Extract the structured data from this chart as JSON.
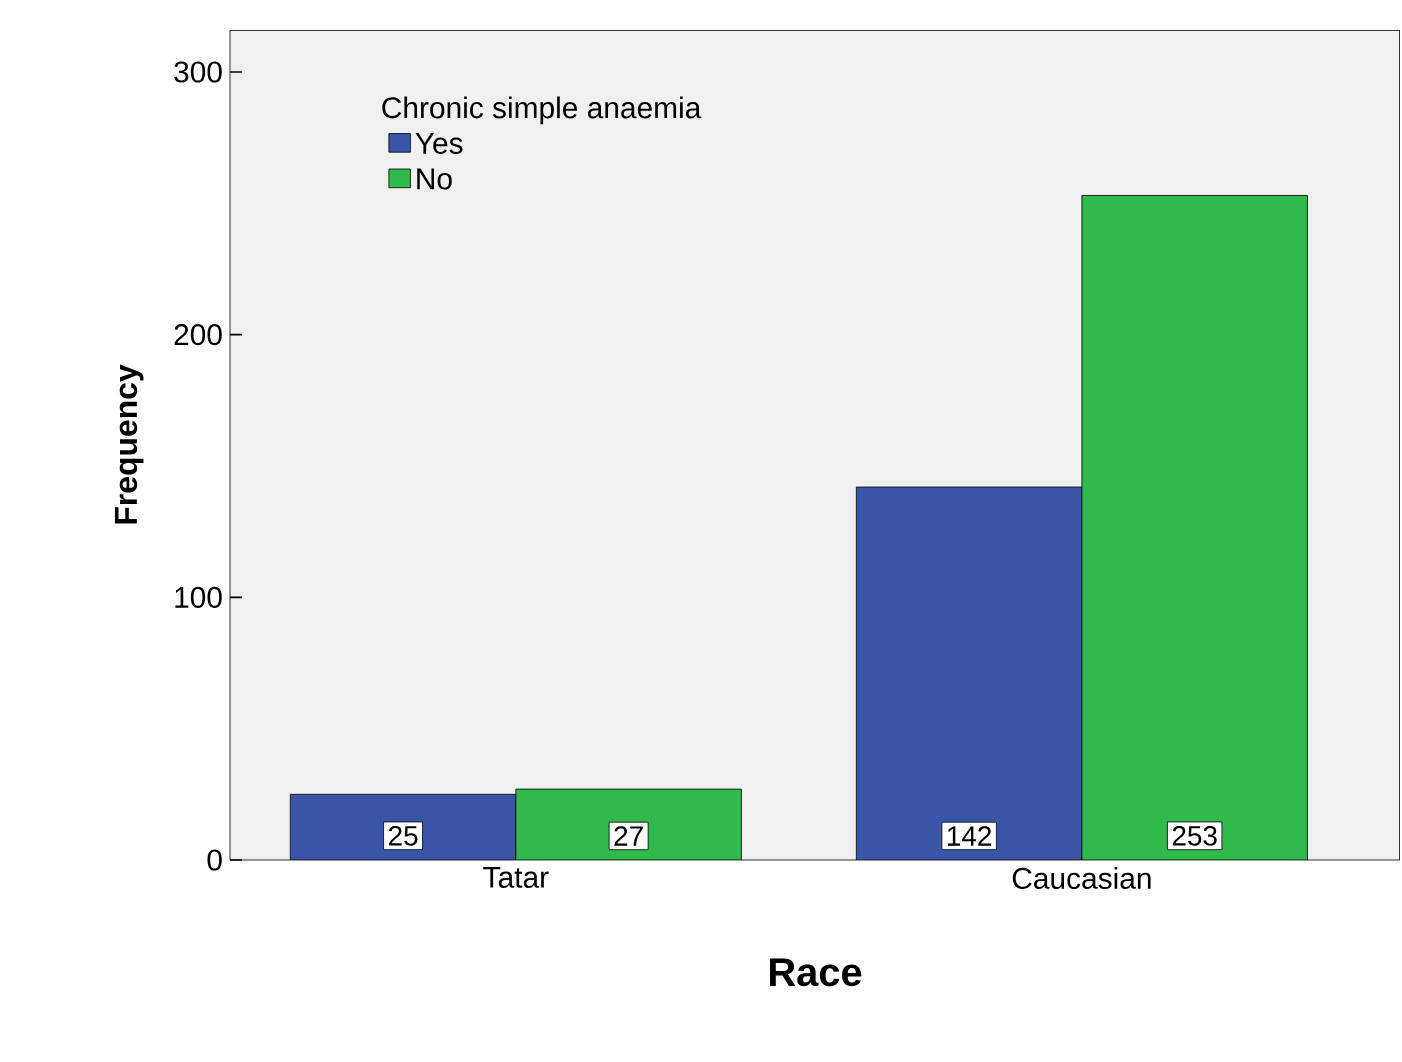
{
  "chart_data": {
    "type": "bar",
    "xlabel": "Race",
    "ylabel": "Frequency",
    "legend_title": "Chronic simple anaemia",
    "categories": [
      "Tatar",
      "Caucasian"
    ],
    "series": [
      {
        "name": "Yes",
        "color": "#3a55a7",
        "values": [
          25,
          142
        ]
      },
      {
        "name": "No",
        "color": "#2fba4b",
        "values": [
          27,
          253
        ]
      }
    ],
    "ylim": [
      0,
      316
    ],
    "yticks": [
      0,
      100,
      200,
      300
    ],
    "data_labels": true,
    "legend": "top left",
    "grid": false
  }
}
